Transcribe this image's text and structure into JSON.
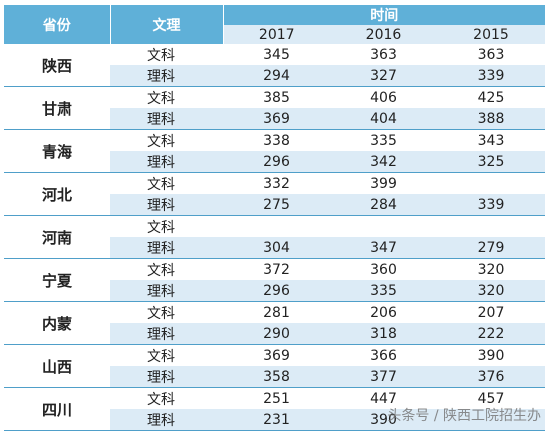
{
  "header": {
    "province_label": "省份",
    "type_label": "文理",
    "time_label": "时间",
    "years": [
      "2017",
      "2016",
      "2015"
    ]
  },
  "rows": [
    {
      "province": "陕西",
      "r1": {
        "type": "文科",
        "v": [
          "345",
          "363",
          "363"
        ]
      },
      "r2": {
        "type": "理科",
        "v": [
          "294",
          "327",
          "339"
        ]
      }
    },
    {
      "province": "甘肃",
      "r1": {
        "type": "文科",
        "v": [
          "385",
          "406",
          "425"
        ]
      },
      "r2": {
        "type": "理科",
        "v": [
          "369",
          "404",
          "388"
        ]
      }
    },
    {
      "province": "青海",
      "r1": {
        "type": "文科",
        "v": [
          "338",
          "335",
          "343"
        ]
      },
      "r2": {
        "type": "理科",
        "v": [
          "296",
          "342",
          "325"
        ]
      }
    },
    {
      "province": "河北",
      "r1": {
        "type": "文科",
        "v": [
          "332",
          "399",
          ""
        ]
      },
      "r2": {
        "type": "理科",
        "v": [
          "275",
          "284",
          "339"
        ]
      }
    },
    {
      "province": "河南",
      "r1": {
        "type": "文科",
        "v": [
          "",
          "",
          ""
        ]
      },
      "r2": {
        "type": "理科",
        "v": [
          "304",
          "347",
          "279"
        ]
      }
    },
    {
      "province": "宁夏",
      "r1": {
        "type": "文科",
        "v": [
          "372",
          "360",
          "320"
        ]
      },
      "r2": {
        "type": "理科",
        "v": [
          "296",
          "335",
          "320"
        ]
      }
    },
    {
      "province": "内蒙",
      "r1": {
        "type": "文科",
        "v": [
          "281",
          "206",
          "207"
        ]
      },
      "r2": {
        "type": "理科",
        "v": [
          "290",
          "318",
          "222"
        ]
      }
    },
    {
      "province": "山西",
      "r1": {
        "type": "文科",
        "v": [
          "369",
          "366",
          "390"
        ]
      },
      "r2": {
        "type": "理科",
        "v": [
          "358",
          "377",
          "376"
        ]
      }
    },
    {
      "province": "四川",
      "r1": {
        "type": "文科",
        "v": [
          "251",
          "447",
          "457"
        ]
      },
      "r2": {
        "type": "理科",
        "v": [
          "231",
          "390",
          ""
        ]
      }
    }
  ],
  "watermark": "头条号 / 陕西工院招生办"
}
